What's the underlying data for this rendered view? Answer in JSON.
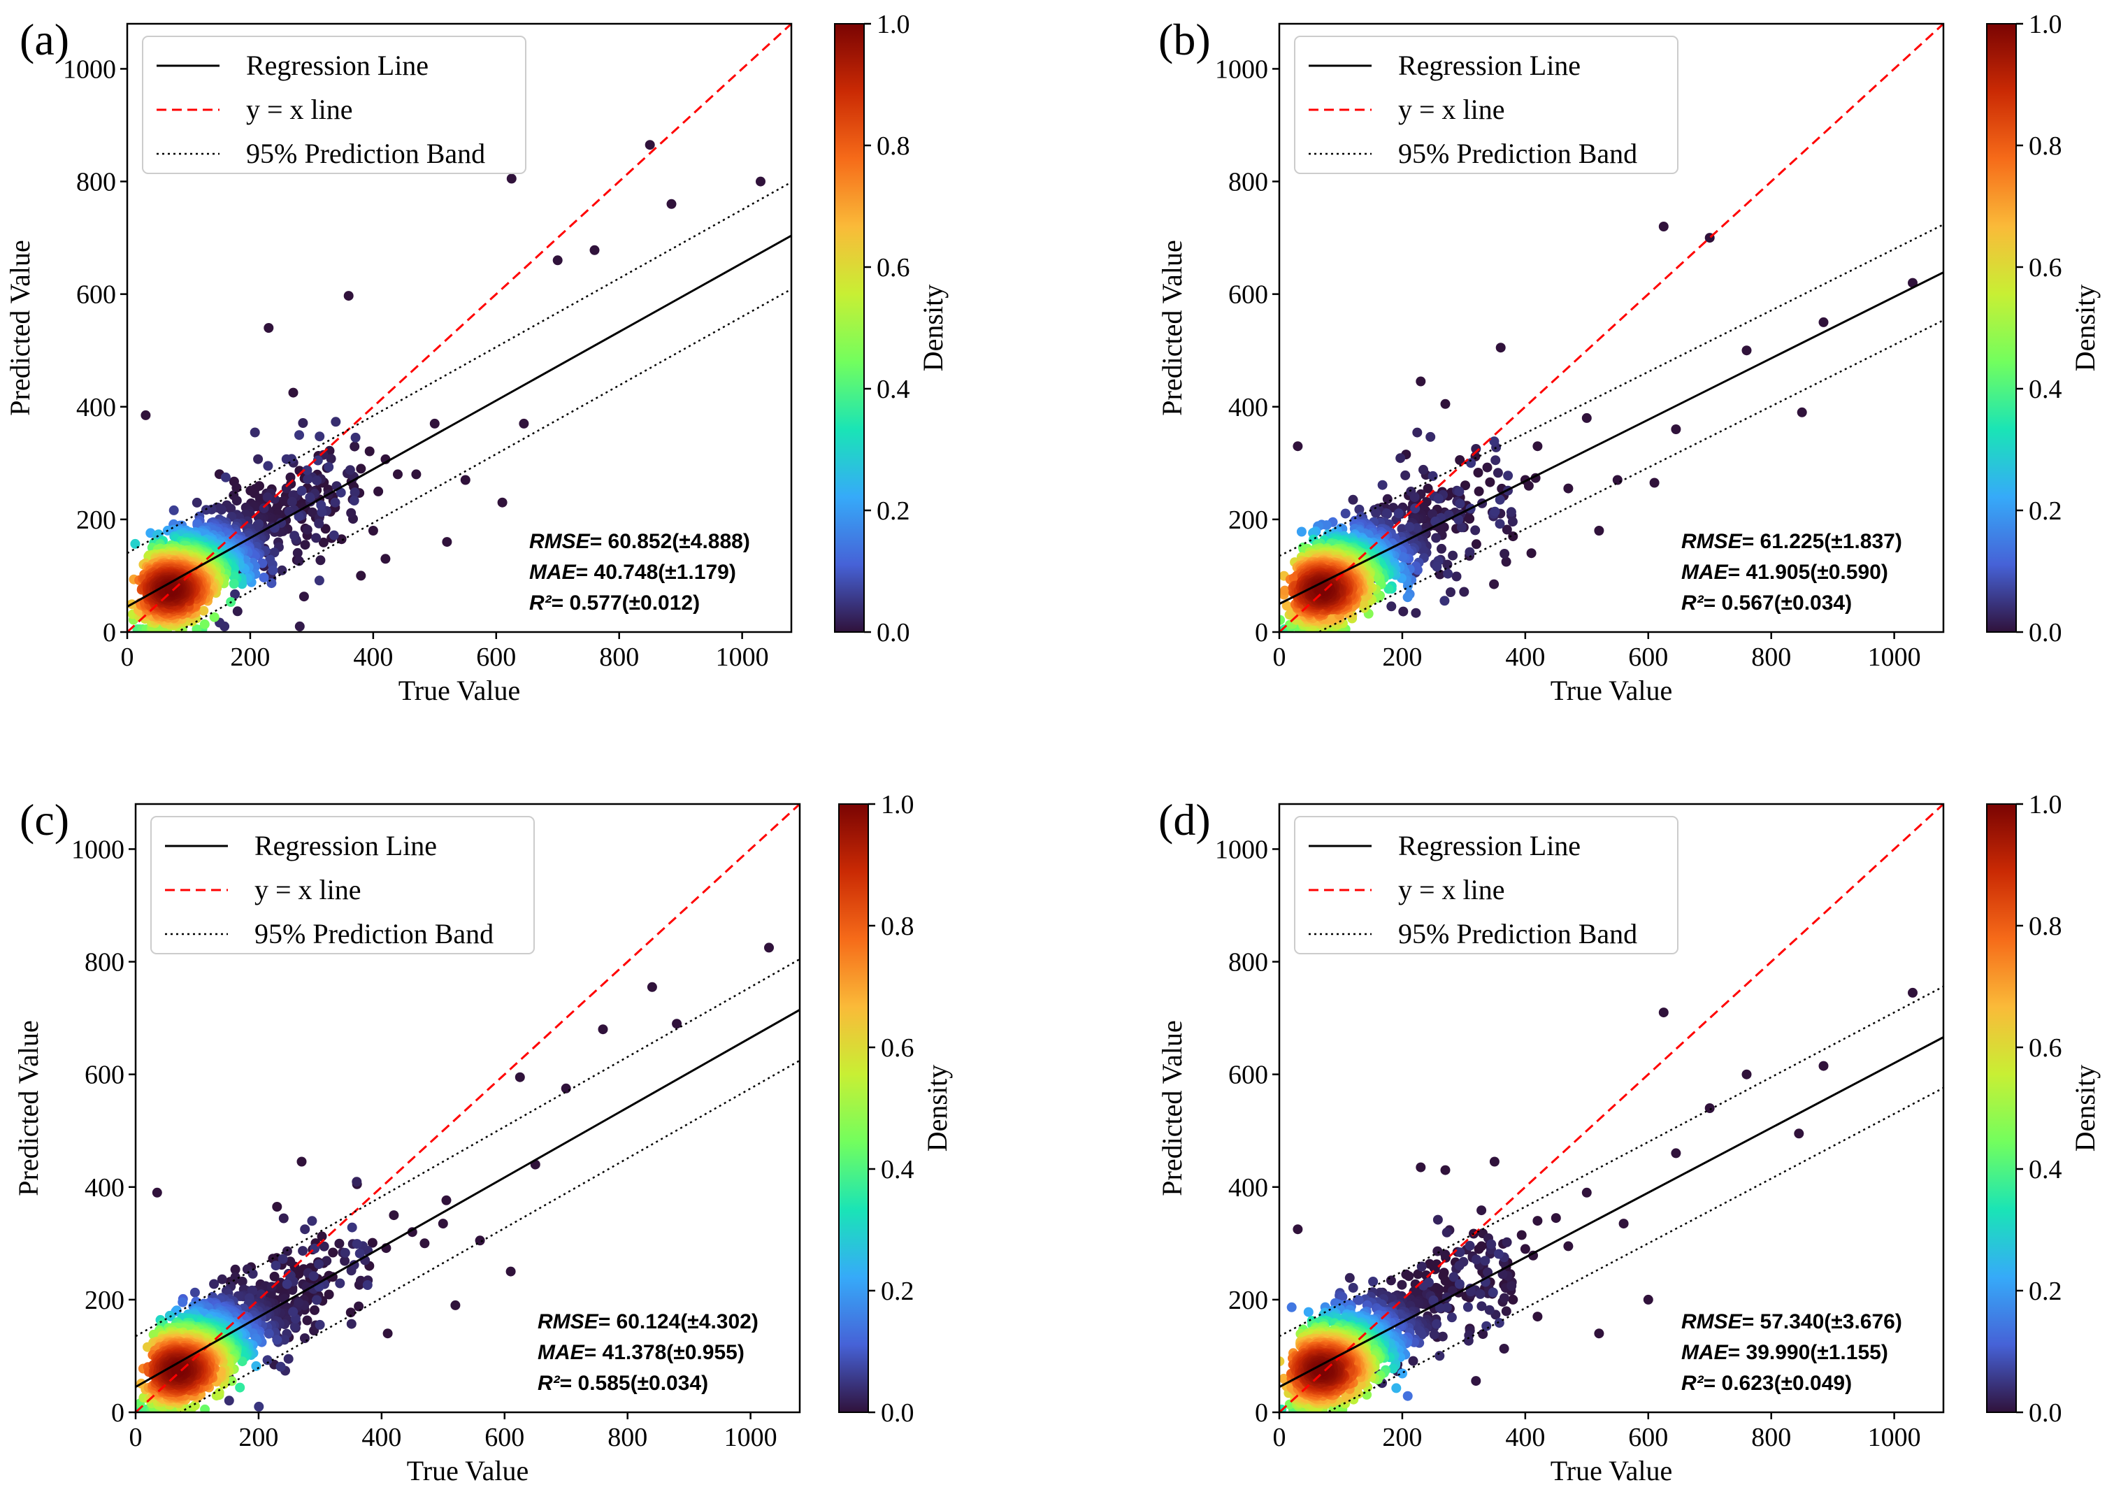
{
  "figure": {
    "legend": {
      "regression": "Regression Line",
      "identity": "y = x line",
      "band": "95% Prediction Band"
    },
    "colorbar": {
      "label": "Density",
      "ticks": [
        "0.0",
        "0.2",
        "0.4",
        "0.6",
        "0.8",
        "1.0"
      ],
      "tick_values": [
        0.0,
        0.2,
        0.4,
        0.6,
        0.8,
        1.0
      ],
      "colormap": [
        "#30123b",
        "#4662d7",
        "#36aaf9",
        "#1ae4b6",
        "#72fe5e",
        "#c8ef34",
        "#faba39",
        "#f66b19",
        "#ca2a04",
        "#7a0403"
      ]
    },
    "colors": {
      "regression": "#000000",
      "identity": "#ff0000",
      "band": "#000000"
    }
  },
  "chart_data": [
    {
      "type": "scatter",
      "panel_label": "(a)",
      "xlabel": "True Value",
      "ylabel": "Predicted Value",
      "xlim": [
        0,
        1080
      ],
      "ylim": [
        0,
        1080
      ],
      "xticks": [
        0,
        200,
        400,
        600,
        800,
        1000
      ],
      "yticks": [
        0,
        200,
        400,
        600,
        800,
        1000
      ],
      "regression": {
        "slope": 0.61,
        "intercept": 45
      },
      "band_halfwidth": 95,
      "metrics": {
        "rmse": "60.852(±4.888)",
        "mae": "40.748(±1.179)",
        "r2": "0.577(±0.012)"
      },
      "outliers": [
        [
          30,
          385
        ],
        [
          230,
          540
        ],
        [
          270,
          425
        ],
        [
          360,
          597
        ],
        [
          500,
          370
        ],
        [
          520,
          160
        ],
        [
          550,
          270
        ],
        [
          610,
          230
        ],
        [
          645,
          370
        ],
        [
          625,
          805
        ],
        [
          700,
          660
        ],
        [
          760,
          678
        ],
        [
          850,
          865
        ],
        [
          885,
          760
        ],
        [
          1030,
          800
        ],
        [
          380,
          290
        ],
        [
          440,
          280
        ],
        [
          470,
          280
        ],
        [
          400,
          180
        ],
        [
          420,
          130
        ],
        [
          380,
          100
        ]
      ]
    },
    {
      "type": "scatter",
      "panel_label": "(b)",
      "xlabel": "True Value",
      "ylabel": "Predicted Value",
      "xlim": [
        0,
        1080
      ],
      "ylim": [
        0,
        1080
      ],
      "xticks": [
        0,
        200,
        400,
        600,
        800,
        1000
      ],
      "yticks": [
        0,
        200,
        400,
        600,
        800,
        1000
      ],
      "regression": {
        "slope": 0.545,
        "intercept": 50
      },
      "band_halfwidth": 85,
      "metrics": {
        "rmse": "61.225(±1.837)",
        "mae": "41.905(±0.590)",
        "r2": "0.567(±0.034)"
      },
      "outliers": [
        [
          30,
          330
        ],
        [
          230,
          445
        ],
        [
          270,
          405
        ],
        [
          360,
          505
        ],
        [
          400,
          270
        ],
        [
          420,
          330
        ],
        [
          470,
          255
        ],
        [
          500,
          380
        ],
        [
          520,
          180
        ],
        [
          550,
          270
        ],
        [
          610,
          265
        ],
        [
          645,
          360
        ],
        [
          625,
          720
        ],
        [
          700,
          700
        ],
        [
          760,
          500
        ],
        [
          850,
          390
        ],
        [
          885,
          550
        ],
        [
          1030,
          620
        ],
        [
          380,
          170
        ],
        [
          410,
          140
        ]
      ]
    },
    {
      "type": "scatter",
      "panel_label": "(c)",
      "xlabel": "True Value",
      "ylabel": "Predicted Value",
      "xlim": [
        0,
        1080
      ],
      "ylim": [
        0,
        1080
      ],
      "xticks": [
        0,
        200,
        400,
        600,
        800,
        1000
      ],
      "yticks": [
        0,
        200,
        400,
        600,
        800,
        1000
      ],
      "regression": {
        "slope": 0.62,
        "intercept": 45
      },
      "band_halfwidth": 90,
      "metrics": {
        "rmse": "60.124(±4.302)",
        "mae": "41.378(±0.955)",
        "r2": "0.585(±0.034)"
      },
      "outliers": [
        [
          35,
          390
        ],
        [
          230,
          365
        ],
        [
          270,
          445
        ],
        [
          360,
          405
        ],
        [
          380,
          260
        ],
        [
          420,
          350
        ],
        [
          450,
          320
        ],
        [
          470,
          300
        ],
        [
          500,
          335
        ],
        [
          520,
          190
        ],
        [
          560,
          305
        ],
        [
          610,
          250
        ],
        [
          625,
          595
        ],
        [
          650,
          440
        ],
        [
          700,
          575
        ],
        [
          760,
          680
        ],
        [
          840,
          755
        ],
        [
          880,
          690
        ],
        [
          1030,
          825
        ],
        [
          410,
          140
        ]
      ]
    },
    {
      "type": "scatter",
      "panel_label": "(d)",
      "xlabel": "True Value",
      "ylabel": "Predicted Value",
      "xlim": [
        0,
        1080
      ],
      "ylim": [
        0,
        1080
      ],
      "xticks": [
        0,
        200,
        400,
        600,
        800,
        1000
      ],
      "yticks": [
        0,
        200,
        400,
        600,
        800,
        1000
      ],
      "regression": {
        "slope": 0.575,
        "intercept": 45
      },
      "band_halfwidth": 90,
      "metrics": {
        "rmse": "57.340(±3.676)",
        "mae": "39.990(±1.155)",
        "r2": "0.623(±0.049)"
      },
      "outliers": [
        [
          30,
          325
        ],
        [
          230,
          435
        ],
        [
          270,
          430
        ],
        [
          350,
          445
        ],
        [
          400,
          290
        ],
        [
          420,
          340
        ],
        [
          450,
          345
        ],
        [
          470,
          295
        ],
        [
          500,
          390
        ],
        [
          520,
          140
        ],
        [
          560,
          335
        ],
        [
          600,
          200
        ],
        [
          625,
          710
        ],
        [
          645,
          460
        ],
        [
          700,
          540
        ],
        [
          760,
          600
        ],
        [
          845,
          495
        ],
        [
          885,
          615
        ],
        [
          1030,
          745
        ],
        [
          380,
          200
        ],
        [
          420,
          170
        ]
      ]
    }
  ]
}
